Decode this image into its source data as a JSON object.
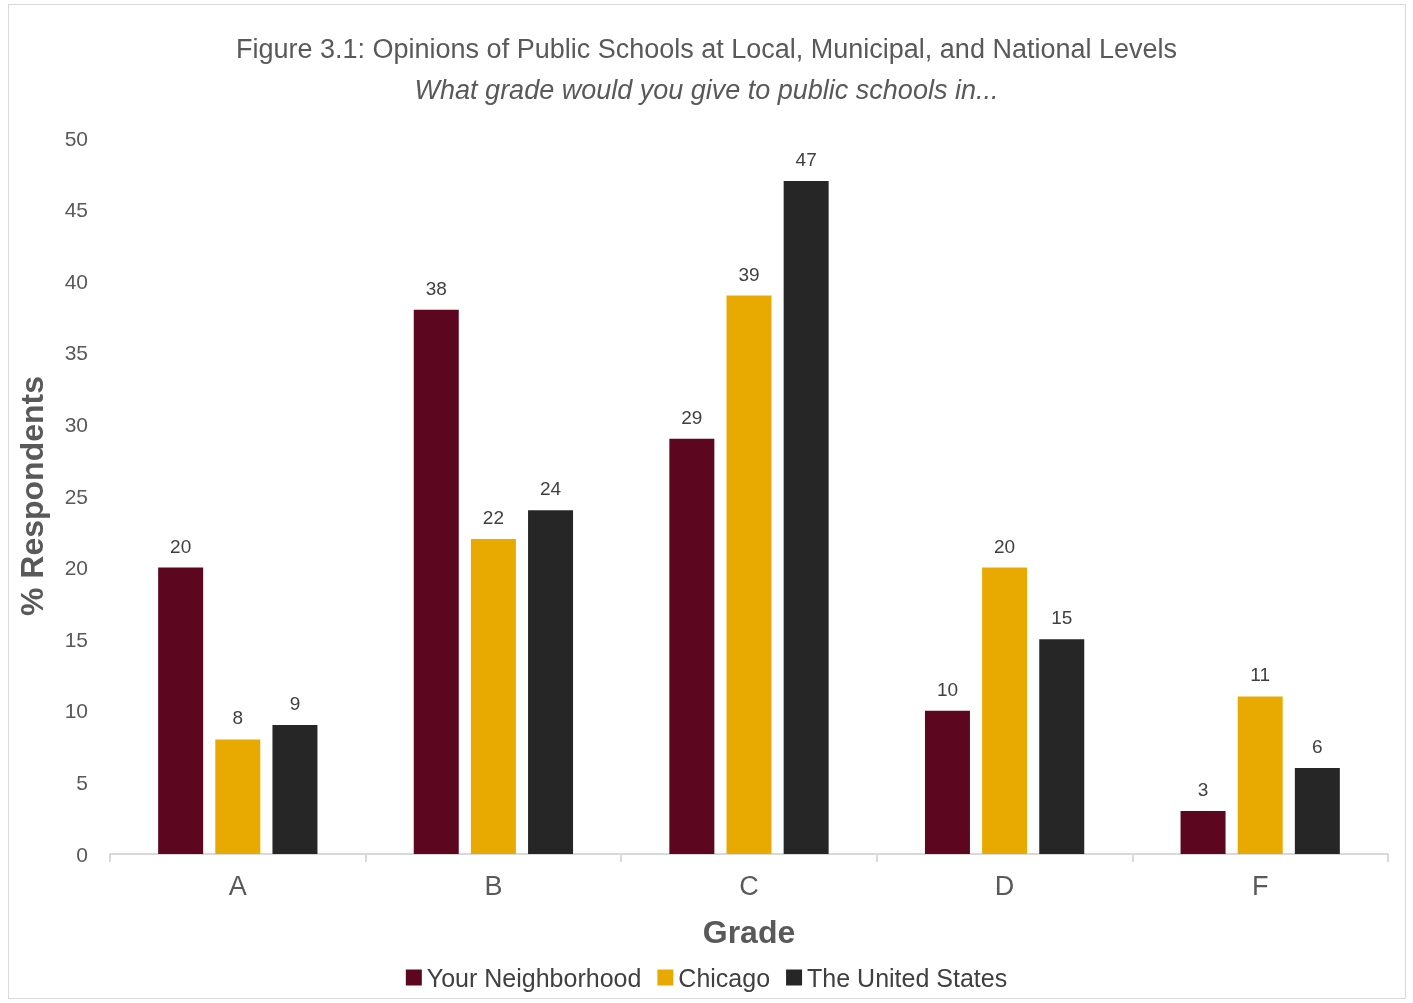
{
  "chart_data": {
    "type": "bar",
    "title": "Figure 3.1: Opinions of Public Schools at Local, Municipal, and National Levels",
    "subtitle": "What grade would you give to public schools in...",
    "xlabel": "Grade",
    "ylabel": "% Respondents",
    "categories": [
      "A",
      "B",
      "C",
      "D",
      "F"
    ],
    "series": [
      {
        "name": "Your Neighborhood",
        "color": "#5c0620",
        "values": [
          20,
          38,
          29,
          10,
          3
        ]
      },
      {
        "name": "Chicago",
        "color": "#e8a900",
        "values": [
          8,
          22,
          39,
          20,
          11
        ]
      },
      {
        "name": "The United States",
        "color": "#262626",
        "values": [
          9,
          24,
          47,
          15,
          6
        ]
      }
    ],
    "ylim": [
      0,
      50
    ],
    "yticks": [
      0,
      5,
      10,
      15,
      20,
      25,
      30,
      35,
      40,
      45,
      50
    ],
    "grid": false,
    "legend": "bottom",
    "data_labels": true
  }
}
